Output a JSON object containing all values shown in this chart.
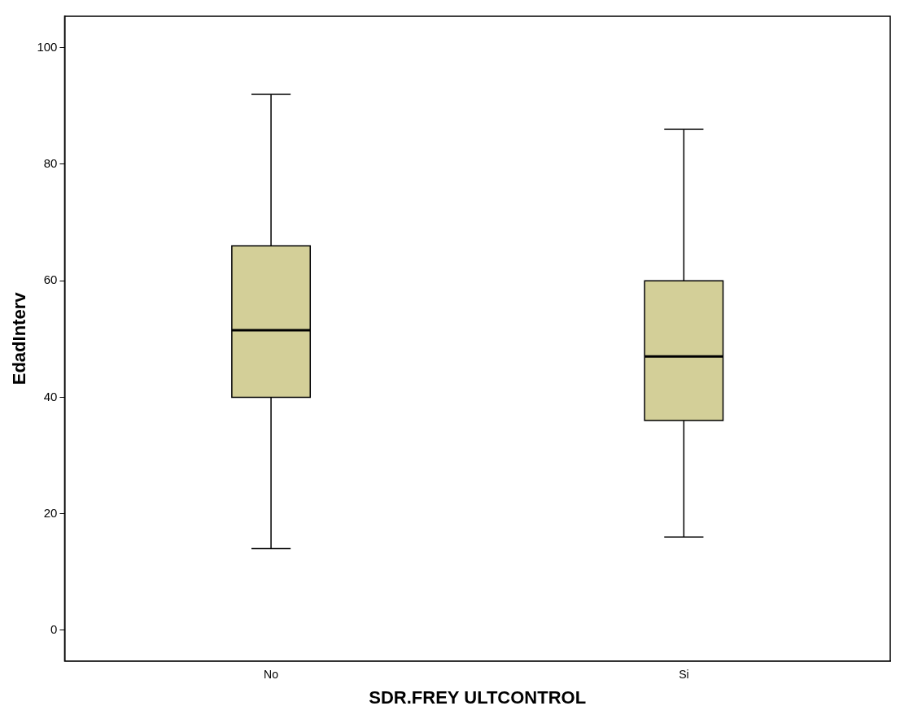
{
  "chart_data": {
    "type": "box",
    "xlabel": "SDR.FREY ULTCONTROL",
    "ylabel": "EdadInterv",
    "categories": [
      "No",
      "Si"
    ],
    "boxes": [
      {
        "low": 14,
        "q1": 40,
        "median": 51.5,
        "q3": 66,
        "high": 92
      },
      {
        "low": 16,
        "q1": 36,
        "median": 47,
        "q3": 60,
        "high": 86
      }
    ],
    "color": "#d3cf98",
    "ylim": [
      -5.3,
      105.4
    ],
    "yticks": [
      0,
      20,
      40,
      60,
      80,
      100
    ]
  }
}
